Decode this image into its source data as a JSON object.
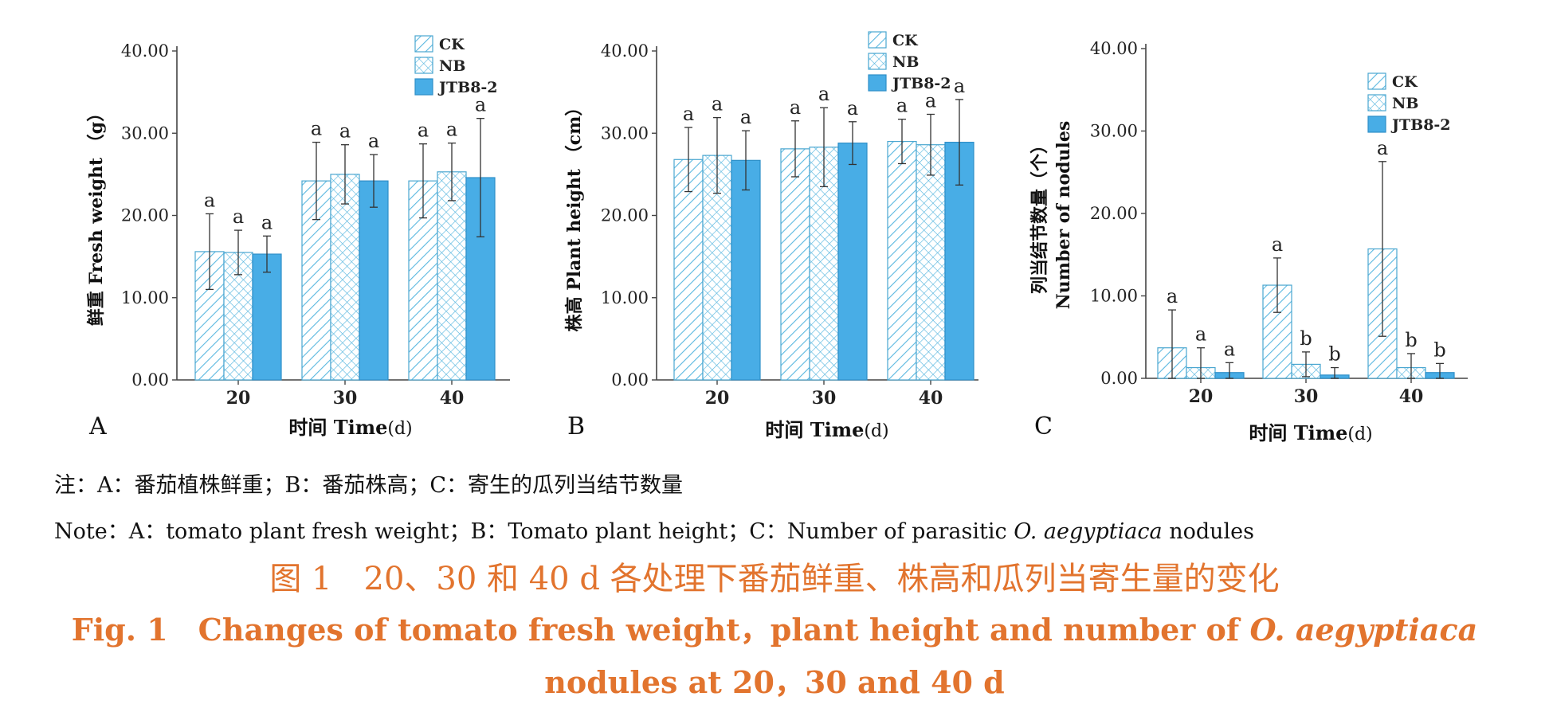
{
  "colors": {
    "CK": "#5ab8e0",
    "NB": "#5ab8e0",
    "JTB8-2": "#48ade6",
    "axis": "#444444",
    "caption": "#e2742e"
  },
  "chart_data": [
    {
      "type": "bar",
      "panel": "A",
      "categories": [
        "20",
        "30",
        "40"
      ],
      "series": [
        {
          "name": "CK",
          "values": [
            15.6,
            24.2,
            24.2
          ],
          "errors": [
            4.6,
            4.7,
            4.5
          ],
          "labels": [
            "a",
            "a",
            "a"
          ]
        },
        {
          "name": "NB",
          "values": [
            15.5,
            25.0,
            25.3
          ],
          "errors": [
            2.7,
            3.6,
            3.5
          ],
          "labels": [
            "a",
            "a",
            "a"
          ]
        },
        {
          "name": "JTB8-2",
          "values": [
            15.3,
            24.2,
            24.6
          ],
          "errors": [
            2.2,
            3.2,
            7.2
          ],
          "labels": [
            "a",
            "a",
            "a"
          ]
        }
      ],
      "ylabel": "鲜重 Fresh weight （g）",
      "xlabel_cn": "时间",
      "xlabel_en": "Time",
      "xlabel_unit": "(d)",
      "ylim": [
        0,
        40
      ],
      "yticks": [
        "0.00",
        "10.00",
        "20.00",
        "30.00",
        "40.00"
      ],
      "legend_position": "top-right",
      "grid": false
    },
    {
      "type": "bar",
      "panel": "B",
      "categories": [
        "20",
        "30",
        "40"
      ],
      "series": [
        {
          "name": "CK",
          "values": [
            26.8,
            28.1,
            29.0
          ],
          "errors": [
            3.9,
            3.4,
            2.7
          ],
          "labels": [
            "a",
            "a",
            "a"
          ]
        },
        {
          "name": "NB",
          "values": [
            27.3,
            28.3,
            28.6
          ],
          "errors": [
            4.6,
            4.8,
            3.7
          ],
          "labels": [
            "a",
            "a",
            "a"
          ]
        },
        {
          "name": "JTB8-2",
          "values": [
            26.7,
            28.8,
            28.9
          ],
          "errors": [
            3.6,
            2.6,
            5.2
          ],
          "labels": [
            "a",
            "a",
            "a"
          ]
        }
      ],
      "ylabel": "株高 Plant height （cm）",
      "xlabel_cn": "时间",
      "xlabel_en": "Time",
      "xlabel_unit": "(d)",
      "ylim": [
        0,
        40
      ],
      "yticks": [
        "0.00",
        "10.00",
        "20.00",
        "30.00",
        "40.00"
      ],
      "legend_position": "top-right",
      "grid": false
    },
    {
      "type": "bar",
      "panel": "C",
      "categories": [
        "20",
        "30",
        "40"
      ],
      "series": [
        {
          "name": "CK",
          "values": [
            3.7,
            11.3,
            15.7
          ],
          "errors": [
            4.6,
            3.3,
            10.6
          ],
          "labels": [
            "a",
            "a",
            "a"
          ]
        },
        {
          "name": "NB",
          "values": [
            1.3,
            1.7,
            1.3
          ],
          "errors": [
            2.4,
            1.5,
            1.7
          ],
          "labels": [
            "a",
            "b",
            "b"
          ]
        },
        {
          "name": "JTB8-2",
          "values": [
            0.7,
            0.4,
            0.7
          ],
          "errors": [
            1.2,
            0.9,
            1.1
          ],
          "labels": [
            "a",
            "b",
            "b"
          ]
        }
      ],
      "ylabel": "列当结节数量（个）",
      "ylabel2": "Number of nodules",
      "xlabel_cn": "时间",
      "xlabel_en": "Time",
      "xlabel_unit": "(d)",
      "ylim": [
        0,
        40
      ],
      "yticks": [
        "0.00",
        "10.00",
        "20.00",
        "30.00",
        "40.00"
      ],
      "legend_position": "top-right",
      "grid": false
    }
  ],
  "note": {
    "cn": "注：A：番茄植株鲜重；B：番茄株高；C：寄生的瓜列当结节数量",
    "en_prefix": "Note：A：tomato plant fresh weight；B：Tomato plant height；C：Number of parasitic ",
    "en_species": "O. aegyptiaca",
    "en_suffix": " nodules"
  },
  "caption": {
    "cn": "图 1　20、30 和 40 d 各处理下番茄鲜重、株高和瓜列当寄生量的变化",
    "en_line1_prefix": "Fig. 1　Changes of tomato fresh weight，plant height and number of ",
    "en_species": "O. aegyptiaca",
    "en_line2": "nodules at 20，30 and 40 d"
  }
}
